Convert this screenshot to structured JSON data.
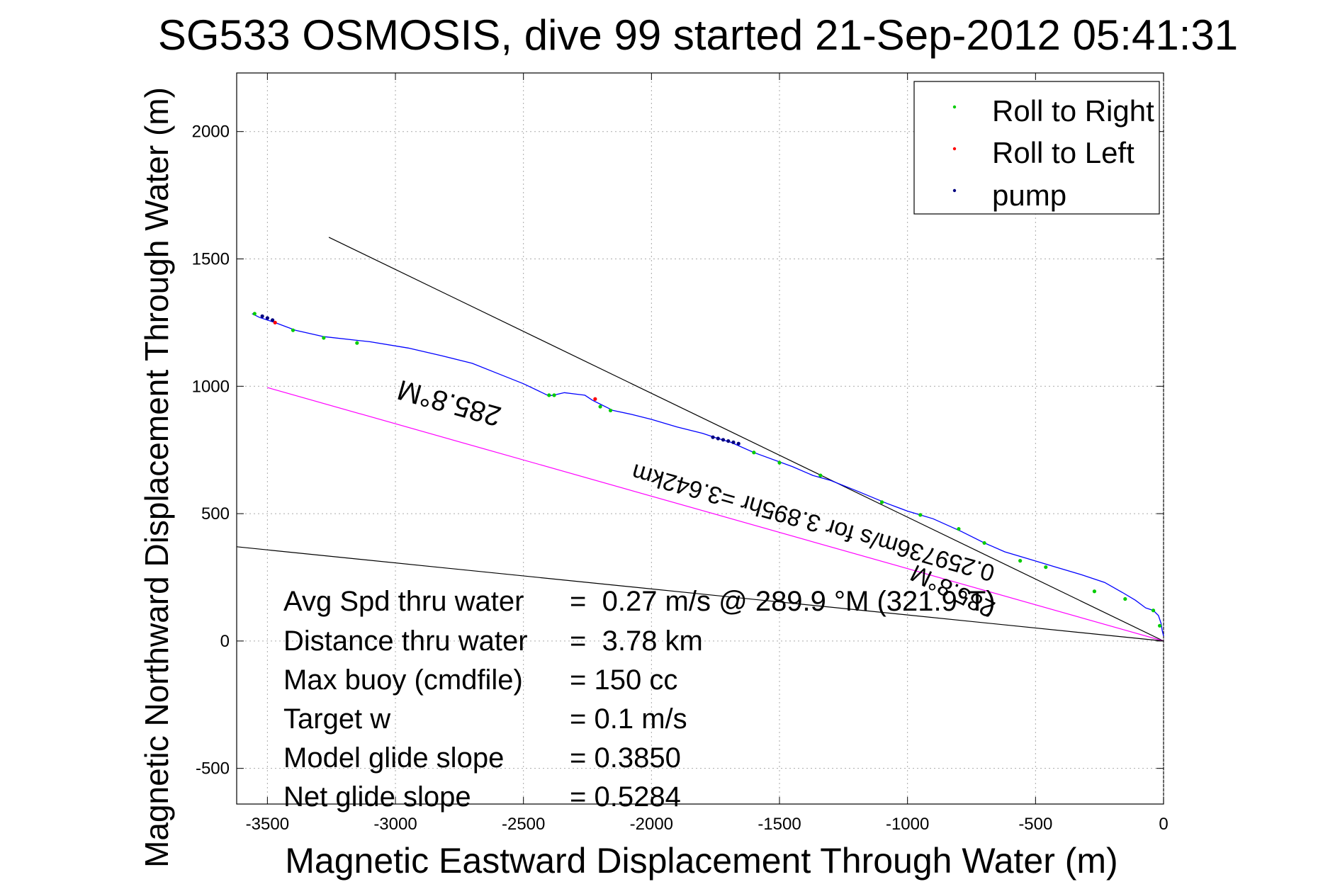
{
  "chart_data": {
    "type": "line",
    "title": "SG533 OSMOSIS, dive 99 started 21-Sep-2012 05:41:31",
    "xlabel": "Magnetic Eastward Displacement Through Water (m)",
    "ylabel": "Magnetic Northward Displacement Through Water (m)",
    "xlim": [
      -3620,
      0
    ],
    "ylim": [
      -640,
      2230
    ],
    "grid": true,
    "xticks": [
      -3500,
      -3000,
      -2500,
      -2000,
      -1500,
      -1000,
      -500,
      0
    ],
    "yticks": [
      -500,
      0,
      500,
      1000,
      1500,
      2000
    ],
    "legend": {
      "placement": "top-right",
      "entries": [
        {
          "label": "Roll to Right",
          "color": "#00cc00"
        },
        {
          "label": "Roll to Left",
          "color": "#ff0000"
        },
        {
          "label": "pump",
          "color": "#000080"
        }
      ]
    },
    "series": [
      {
        "color": "#0000ff",
        "x": [
          0,
          -5,
          -10,
          -20,
          -40,
          -70,
          -110,
          -160,
          -230,
          -320,
          -420,
          -520,
          -620,
          -700,
          -790,
          -900,
          -950,
          -1000,
          -1080,
          -1200,
          -1300,
          -1370,
          -1450,
          -1600,
          -1690,
          -1740,
          -1800,
          -1900,
          -2000,
          -2080,
          -2150,
          -2200,
          -2230,
          -2260,
          -2300,
          -2340,
          -2370,
          -2400,
          -2500,
          -2600,
          -2700,
          -2820,
          -2950,
          -3100,
          -3280,
          -3390,
          -3470,
          -3530,
          -3560
        ],
        "y": [
          20,
          40,
          70,
          100,
          120,
          130,
          160,
          190,
          230,
          260,
          290,
          320,
          350,
          385,
          430,
          480,
          495,
          510,
          540,
          590,
          630,
          650,
          685,
          740,
          780,
          795,
          815,
          840,
          870,
          890,
          905,
          930,
          945,
          965,
          970,
          975,
          968,
          962,
          1010,
          1050,
          1090,
          1120,
          1150,
          1175,
          1195,
          1220,
          1250,
          1270,
          1285
        ]
      }
    ],
    "roll_right_points": {
      "x": [
        -15,
        -40,
        -150,
        -270,
        -460,
        -560,
        -700,
        -800,
        -950,
        -1100,
        -1340,
        -1500,
        -1600,
        -2160,
        -2200,
        -2380,
        -2400,
        -3150,
        -3280,
        -3400,
        -3550
      ],
      "y": [
        60,
        120,
        165,
        195,
        290,
        315,
        385,
        440,
        495,
        545,
        650,
        700,
        740,
        905,
        920,
        965,
        965,
        1170,
        1190,
        1220,
        1285
      ]
    },
    "roll_left_points": {
      "x": [
        -2220,
        -3470
      ],
      "y": [
        950,
        1250
      ]
    },
    "pump_points": {
      "x": [
        -1660,
        -1680,
        -1700,
        -1720,
        -1740,
        -1760,
        -3480,
        -3500,
        -3520
      ],
      "y": [
        775,
        780,
        785,
        790,
        795,
        800,
        1260,
        1268,
        1275
      ]
    },
    "reference_lines": [
      {
        "color": "#000000",
        "x": [
          0,
          -3260
        ],
        "y": [
          0,
          1585
        ]
      },
      {
        "color": "#ff00ff",
        "x": [
          0,
          -3500
        ],
        "y": [
          0,
          995
        ]
      },
      {
        "color": "#000000",
        "x": [
          0,
          -3620
        ],
        "y": [
          0,
          370
        ]
      }
    ],
    "annotations": [
      "285.8°M",
      "0.259736m/s for 3.895hr =3.642km",
      "285.8°M"
    ],
    "stats": [
      {
        "label": "Avg Spd thru water",
        "value": "=  0.27 m/s @ 289.9 °M (321.9°T)"
      },
      {
        "label": "Distance thru water",
        "value": "=  3.78 km"
      },
      {
        "label": "Max buoy (cmdfile)",
        "value": "= 150 cc"
      },
      {
        "label": "Target w",
        "value": "= 0.1 m/s"
      },
      {
        "label": "Model glide slope",
        "value": "= 0.3850"
      },
      {
        "label": "Net glide slope",
        "value": "= 0.5284"
      }
    ]
  }
}
